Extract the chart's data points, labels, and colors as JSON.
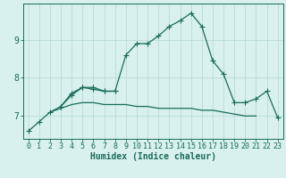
{
  "x": [
    0,
    1,
    2,
    3,
    4,
    5,
    6,
    7,
    8,
    9,
    10,
    11,
    12,
    13,
    14,
    15,
    16,
    17,
    18,
    19,
    20,
    21,
    22,
    23
  ],
  "line1": [
    6.6,
    6.85,
    7.1,
    7.25,
    7.55,
    7.75,
    7.7,
    7.65,
    7.65,
    8.6,
    8.9,
    8.9,
    9.1,
    9.35,
    9.5,
    9.7,
    9.35,
    8.45,
    8.1,
    7.35,
    7.35,
    7.45,
    7.65,
    6.95
  ],
  "line2": [
    null,
    null,
    null,
    7.25,
    7.6,
    7.75,
    7.75,
    7.65,
    7.65,
    null,
    null,
    null,
    null,
    null,
    null,
    null,
    null,
    null,
    null,
    null,
    null,
    null,
    null,
    null
  ],
  "line3": [
    null,
    null,
    7.1,
    7.2,
    7.3,
    7.35,
    7.35,
    7.3,
    7.3,
    7.3,
    7.25,
    7.25,
    7.2,
    7.2,
    7.2,
    7.2,
    7.15,
    7.15,
    7.1,
    7.05,
    7.0,
    7.0,
    null,
    null
  ],
  "line_color": "#1a6b5a",
  "bg_color": "#d8f0ee",
  "grid_color": "#b8dcd8",
  "xlabel": "Humidex (Indice chaleur)",
  "xlim": [
    -0.5,
    23.5
  ],
  "ylim": [
    6.4,
    9.95
  ],
  "yticks": [
    7,
    8,
    9
  ],
  "xticks": [
    0,
    1,
    2,
    3,
    4,
    5,
    6,
    7,
    8,
    9,
    10,
    11,
    12,
    13,
    14,
    15,
    16,
    17,
    18,
    19,
    20,
    21,
    22,
    23
  ],
  "marker": "+",
  "markersize": 4,
  "linewidth": 0.9,
  "tick_fontsize": 6,
  "xlabel_fontsize": 7
}
